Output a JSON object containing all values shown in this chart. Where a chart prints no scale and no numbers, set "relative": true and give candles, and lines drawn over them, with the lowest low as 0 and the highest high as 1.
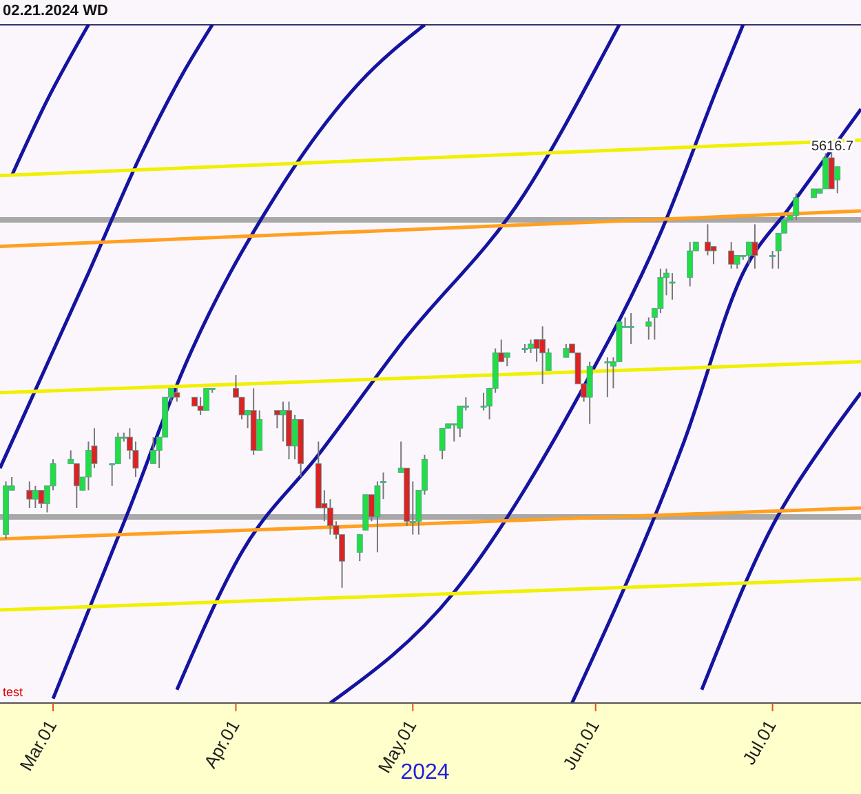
{
  "chart_data": {
    "type": "candlestick",
    "relative": true,
    "xlabel": "2024",
    "annotations": [
      "02.21.2024 WD",
      "test",
      {
        "text": "5616.7",
        "x": "2024-07-12",
        "y": 0.95
      }
    ],
    "xlim": [
      "2024-02-21",
      "2024-07-16"
    ],
    "xticks": [
      {
        "value": "2024-03-01",
        "label": "Mar.01"
      },
      {
        "value": "2024-04-01",
        "label": "Apr.01"
      },
      {
        "value": "2024-05-01",
        "label": "May.01"
      },
      {
        "value": "2024-06-01",
        "label": "Jun.01"
      },
      {
        "value": "2024-07-01",
        "label": "Jul.01"
      }
    ],
    "x": [
      "2024-02-22",
      "2024-02-23",
      "2024-02-26",
      "2024-02-27",
      "2024-02-28",
      "2024-02-29",
      "2024-03-01",
      "2024-03-04",
      "2024-03-05",
      "2024-03-06",
      "2024-03-07",
      "2024-03-08",
      "2024-03-11",
      "2024-03-12",
      "2024-03-13",
      "2024-03-14",
      "2024-03-15",
      "2024-03-18",
      "2024-03-19",
      "2024-03-20",
      "2024-03-21",
      "2024-03-22",
      "2024-03-25",
      "2024-03-26",
      "2024-03-27",
      "2024-03-28",
      "2024-04-01",
      "2024-04-02",
      "2024-04-03",
      "2024-04-04",
      "2024-04-05",
      "2024-04-08",
      "2024-04-09",
      "2024-04-10",
      "2024-04-11",
      "2024-04-12",
      "2024-04-15",
      "2024-04-16",
      "2024-04-17",
      "2024-04-18",
      "2024-04-19",
      "2024-04-22",
      "2024-04-23",
      "2024-04-24",
      "2024-04-25",
      "2024-04-26",
      "2024-04-29",
      "2024-04-30",
      "2024-05-01",
      "2024-05-02",
      "2024-05-03",
      "2024-05-06",
      "2024-05-07",
      "2024-05-08",
      "2024-05-09",
      "2024-05-10",
      "2024-05-13",
      "2024-05-14",
      "2024-05-15",
      "2024-05-16",
      "2024-05-17",
      "2024-05-20",
      "2024-05-21",
      "2024-05-22",
      "2024-05-23",
      "2024-05-24",
      "2024-05-27",
      "2024-05-28",
      "2024-05-29",
      "2024-05-30",
      "2024-05-31",
      "2024-06-03",
      "2024-06-04",
      "2024-06-05",
      "2024-06-06",
      "2024-06-07",
      "2024-06-10",
      "2024-06-11",
      "2024-06-12",
      "2024-06-13",
      "2024-06-14",
      "2024-06-17",
      "2024-06-18",
      "2024-06-20",
      "2024-06-21",
      "2024-06-24",
      "2024-06-25",
      "2024-06-26",
      "2024-06-27",
      "2024-06-28",
      "2024-07-01",
      "2024-07-02",
      "2024-07-03",
      "2024-07-04",
      "2024-07-05",
      "2024-07-08",
      "2024-07-09",
      "2024-07-10",
      "2024-07-11",
      "2024-07-12"
    ],
    "ohlc": [
      [
        0.12,
        0.24,
        0.11,
        0.23
      ],
      [
        0.22,
        0.25,
        0.22,
        0.23
      ],
      [
        0.22,
        0.24,
        0.18,
        0.2
      ],
      [
        0.2,
        0.23,
        0.18,
        0.22
      ],
      [
        0.22,
        0.22,
        0.18,
        0.19
      ],
      [
        0.19,
        0.23,
        0.17,
        0.23
      ],
      [
        0.23,
        0.29,
        0.22,
        0.28
      ],
      [
        0.28,
        0.31,
        0.28,
        0.29
      ],
      [
        0.28,
        0.28,
        0.18,
        0.23
      ],
      [
        0.22,
        0.25,
        0.22,
        0.25
      ],
      [
        0.25,
        0.33,
        0.22,
        0.31
      ],
      [
        0.32,
        0.36,
        0.27,
        0.28
      ],
      [
        0.28,
        0.28,
        0.23,
        0.28
      ],
      [
        0.28,
        0.35,
        0.28,
        0.34
      ],
      [
        0.34,
        0.35,
        0.33,
        0.34
      ],
      [
        0.34,
        0.36,
        0.29,
        0.31
      ],
      [
        0.31,
        0.33,
        0.25,
        0.27
      ],
      [
        0.28,
        0.34,
        0.28,
        0.31
      ],
      [
        0.31,
        0.34,
        0.27,
        0.34
      ],
      [
        0.34,
        0.43,
        0.34,
        0.43
      ],
      [
        0.43,
        0.45,
        0.42,
        0.45
      ],
      [
        0.44,
        0.45,
        0.42,
        0.43
      ],
      [
        0.43,
        0.43,
        0.41,
        0.41
      ],
      [
        0.41,
        0.43,
        0.39,
        0.4
      ],
      [
        0.4,
        0.45,
        0.4,
        0.45
      ],
      [
        0.45,
        0.45,
        0.44,
        0.45
      ],
      [
        0.45,
        0.48,
        0.43,
        0.43
      ],
      [
        0.43,
        0.43,
        0.38,
        0.39
      ],
      [
        0.39,
        0.4,
        0.36,
        0.4
      ],
      [
        0.4,
        0.45,
        0.3,
        0.31
      ],
      [
        0.31,
        0.4,
        0.31,
        0.38
      ],
      [
        0.4,
        0.4,
        0.36,
        0.39
      ],
      [
        0.39,
        0.42,
        0.33,
        0.4
      ],
      [
        0.4,
        0.42,
        0.29,
        0.32
      ],
      [
        0.32,
        0.39,
        0.29,
        0.38
      ],
      [
        0.38,
        0.38,
        0.25,
        0.28
      ],
      [
        0.28,
        0.33,
        0.18,
        0.18
      ],
      [
        0.19,
        0.22,
        0.15,
        0.18
      ],
      [
        0.18,
        0.2,
        0.12,
        0.14
      ],
      [
        0.14,
        0.15,
        0.11,
        0.12
      ],
      [
        0.12,
        0.12,
        0,
        0.06
      ],
      [
        0.08,
        0.12,
        0.06,
        0.12
      ],
      [
        0.13,
        0.21,
        0.13,
        0.21
      ],
      [
        0.21,
        0.21,
        0.15,
        0.16
      ],
      [
        0.16,
        0.24,
        0.08,
        0.23
      ],
      [
        0.24,
        0.26,
        0.2,
        0.24
      ],
      [
        0.26,
        0.33,
        0.26,
        0.27
      ],
      [
        0.27,
        0.27,
        0.14,
        0.15
      ],
      [
        0.15,
        0.24,
        0.12,
        0.15
      ],
      [
        0.15,
        0.22,
        0.12,
        0.22
      ],
      [
        0.22,
        0.3,
        0.21,
        0.29
      ],
      [
        0.31,
        0.36,
        0.29,
        0.36
      ],
      [
        0.36,
        0.37,
        0.36,
        0.37
      ],
      [
        0.37,
        0.37,
        0.33,
        0.37
      ],
      [
        0.36,
        0.41,
        0.34,
        0.41
      ],
      [
        0.41,
        0.43,
        0.4,
        0.41
      ],
      [
        0.41,
        0.44,
        0.4,
        0.41
      ],
      [
        0.41,
        0.45,
        0.38,
        0.45
      ],
      [
        0.45,
        0.54,
        0.44,
        0.53
      ],
      [
        0.53,
        0.56,
        0.51,
        0.51
      ],
      [
        0.52,
        0.53,
        0.5,
        0.53
      ],
      [
        0.54,
        0.55,
        0.53,
        0.54
      ],
      [
        0.54,
        0.56,
        0.53,
        0.55
      ],
      [
        0.56,
        0.56,
        0.51,
        0.54
      ],
      [
        0.56,
        0.59,
        0.46,
        0.53
      ],
      [
        0.49,
        0.54,
        0.49,
        0.53
      ],
      [
        0.52,
        0.55,
        0.52,
        0.54
      ],
      [
        0.55,
        0.55,
        0.53,
        0.53
      ],
      [
        0.53,
        0.53,
        0.46,
        0.46
      ],
      [
        0.46,
        0.46,
        0.42,
        0.43
      ],
      [
        0.43,
        0.51,
        0.37,
        0.5
      ],
      [
        0.51,
        0.52,
        0.43,
        0.51
      ],
      [
        0.5,
        0.52,
        0.45,
        0.51
      ],
      [
        0.51,
        0.6,
        0.51,
        0.6
      ],
      [
        0.59,
        0.61,
        0.59,
        0.59
      ],
      [
        0.59,
        0.62,
        0.55,
        0.59
      ],
      [
        0.59,
        0.61,
        0.56,
        0.6
      ],
      [
        0.61,
        0.63,
        0.56,
        0.63
      ],
      [
        0.63,
        0.72,
        0.62,
        0.7
      ],
      [
        0.7,
        0.72,
        0.66,
        0.71
      ],
      [
        0.69,
        0.71,
        0.65,
        0.69
      ],
      [
        0.7,
        0.78,
        0.68,
        0.76
      ],
      [
        0.76,
        0.78,
        0.76,
        0.78
      ],
      [
        0.78,
        0.82,
        0.75,
        0.76
      ],
      [
        0.77,
        0.77,
        0.73,
        0.76
      ],
      [
        0.76,
        0.78,
        0.72,
        0.73
      ],
      [
        0.73,
        0.75,
        0.72,
        0.75
      ],
      [
        0.75,
        0.75,
        0.74,
        0.75
      ],
      [
        0.75,
        0.78,
        0.73,
        0.78
      ],
      [
        0.78,
        0.82,
        0.72,
        0.75
      ],
      [
        0.75,
        0.76,
        0.72,
        0.75
      ],
      [
        0.76,
        0.8,
        0.72,
        0.8
      ],
      [
        0.8,
        0.83,
        0.8,
        0.83
      ],
      [
        0.83,
        0.84,
        0.83,
        0.84
      ],
      [
        0.84,
        0.89,
        0.83,
        0.88
      ],
      [
        0.88,
        0.9,
        0.88,
        0.9
      ],
      [
        0.89,
        0.9,
        0.89,
        0.9
      ],
      [
        0.9,
        0.98,
        0.9,
        0.97
      ],
      [
        0.97,
        1,
        0.9,
        0.9
      ],
      [
        0.92,
        0.95,
        0.89,
        0.95
      ]
    ],
    "series": [
      {
        "type": "line",
        "color": "#1414a0",
        "x": [
          "2024-02-23",
          "2024-02-29",
          "2024-03-07"
        ],
        "values": [
          0.93,
          1.1,
          1.27
        ]
      },
      {
        "type": "line",
        "color": "#1414a0",
        "x": [
          "2024-02-21",
          "2024-03-07",
          "2024-03-16",
          "2024-03-23",
          "2024-03-28"
        ],
        "values": [
          0.27,
          0.71,
          0.98,
          1.16,
          1.27
        ]
      },
      {
        "type": "line",
        "color": "#1414a0",
        "x": [
          "2024-03-01",
          "2024-03-14",
          "2024-03-23",
          "2024-04-08",
          "2024-04-22",
          "2024-05-03"
        ],
        "values": [
          -0.25,
          0.18,
          0.49,
          0.89,
          1.14,
          1.27
        ]
      },
      {
        "type": "line",
        "color": "#1414a0",
        "x": [
          "2024-03-22",
          "2024-04-02",
          "2024-04-15",
          "2024-04-29",
          "2024-05-20",
          "2024-06-03",
          "2024-06-05"
        ],
        "values": [
          -0.23,
          0.08,
          0.3,
          0.55,
          0.89,
          1.22,
          1.27
        ]
      },
      {
        "type": "line",
        "color": "#1414a0",
        "x": [
          "2024-04-17",
          "2024-05-08",
          "2024-05-29",
          "2024-06-12",
          "2024-06-22",
          "2024-06-26"
        ],
        "values": [
          -0.26,
          -0.01,
          0.43,
          0.8,
          1.14,
          1.27
        ]
      },
      {
        "type": "line",
        "color": "#1414a0",
        "x": [
          "2024-05-28",
          "2024-06-16",
          "2024-06-26",
          "2024-07-04",
          "2024-07-16"
        ],
        "values": [
          -0.26,
          0.33,
          0.71,
          0.86,
          1.08
        ]
      },
      {
        "type": "line",
        "color": "#1414a0",
        "x": [
          "2024-06-19",
          "2024-07-01",
          "2024-07-10",
          "2024-07-16"
        ],
        "values": [
          -0.23,
          0.14,
          0.33,
          0.44
        ]
      },
      {
        "type": "line",
        "color": "#f0f000",
        "x": [
          "2024-02-21",
          "2024-07-16"
        ],
        "values": [
          0.93,
          1.01
        ]
      },
      {
        "type": "line",
        "color": "#f0f000",
        "x": [
          "2024-02-21",
          "2024-07-16"
        ],
        "values": [
          0.44,
          0.51
        ]
      },
      {
        "type": "line",
        "color": "#f0f000",
        "x": [
          "2024-02-21",
          "2024-07-16"
        ],
        "values": [
          -0.05,
          0.02
        ]
      },
      {
        "type": "line",
        "color": "#ffa020",
        "x": [
          "2024-02-21",
          "2024-07-16"
        ],
        "values": [
          0.77,
          0.85
        ]
      },
      {
        "type": "line",
        "color": "#ffa020",
        "x": [
          "2024-02-21",
          "2024-07-16"
        ],
        "values": [
          0.11,
          0.18
        ]
      }
    ],
    "ref_lines": [
      {
        "axis": "y",
        "value": 0.83,
        "color": "#a8a8a8"
      },
      {
        "axis": "y",
        "value": 0.16,
        "color": "#a8a8a8"
      }
    ]
  }
}
